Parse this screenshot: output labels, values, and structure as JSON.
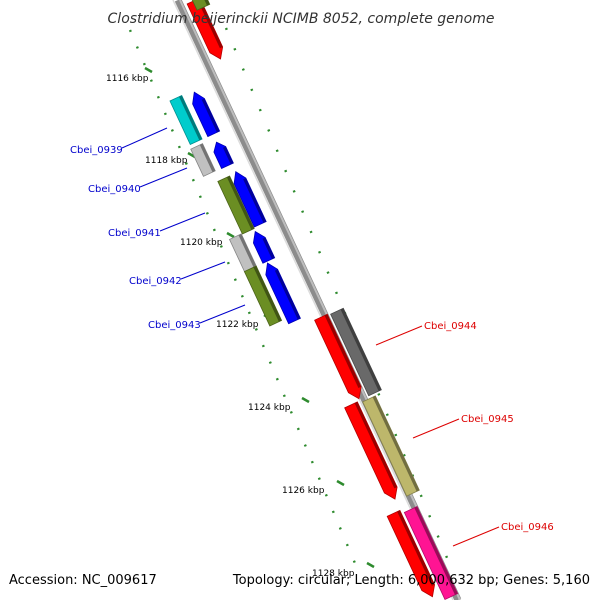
{
  "title": "Clostridium beijerinckii NCIMB 8052, complete genome",
  "footer": {
    "accession": "Accession: NC_009617",
    "summary": "Topology: circular; Length: 6,000,632 bp; Genes: 5,160"
  },
  "colors": {
    "backbone": "#8c8c8c",
    "ruler": "#2e8b2e",
    "label_left": "#0000cc",
    "label_right": "#dd0000"
  },
  "ticks": [
    {
      "label": "1116 kbp"
    },
    {
      "label": "1118 kbp"
    },
    {
      "label": "1120 kbp"
    },
    {
      "label": "1122 kbp"
    },
    {
      "label": "1124 kbp"
    },
    {
      "label": "1126 kbp"
    },
    {
      "label": "1128 kbp"
    }
  ],
  "gene_labels": [
    {
      "label": "Cbei_0939",
      "side": "left"
    },
    {
      "label": "Cbei_0940",
      "side": "left"
    },
    {
      "label": "Cbei_0941",
      "side": "left"
    },
    {
      "label": "Cbei_0942",
      "side": "left"
    },
    {
      "label": "Cbei_0943",
      "side": "left"
    },
    {
      "label": "Cbei_0944",
      "side": "right"
    },
    {
      "label": "Cbei_0945",
      "side": "right"
    },
    {
      "label": "Cbei_0946",
      "side": "right"
    }
  ],
  "features": [
    {
      "name": "cds-feature",
      "color": "#ff0000"
    },
    {
      "name": "cds-feature",
      "color": "#6b8e23"
    },
    {
      "name": "gene-feature",
      "color": "#00cccc"
    },
    {
      "name": "cds-feature",
      "color": "#0000ff"
    },
    {
      "name": "gene-feature",
      "color": "#c0c0c0"
    },
    {
      "name": "cds-feature",
      "color": "#0000ff"
    },
    {
      "name": "gene-feature",
      "color": "#6b8e23"
    },
    {
      "name": "cds-feature",
      "color": "#0000ff"
    },
    {
      "name": "gene-feature",
      "color": "#c0c0c0"
    },
    {
      "name": "cds-feature",
      "color": "#0000ff"
    },
    {
      "name": "gene-feature",
      "color": "#6b8e23"
    },
    {
      "name": "cds-feature",
      "color": "#0000ff"
    },
    {
      "name": "cds-feature",
      "color": "#ff0000"
    },
    {
      "name": "gene-feature",
      "color": "#696969"
    },
    {
      "name": "cds-feature",
      "color": "#ff0000"
    },
    {
      "name": "gene-feature",
      "color": "#bdb76b"
    },
    {
      "name": "cds-feature",
      "color": "#ff0000"
    },
    {
      "name": "gene-feature",
      "color": "#ff1493"
    }
  ]
}
